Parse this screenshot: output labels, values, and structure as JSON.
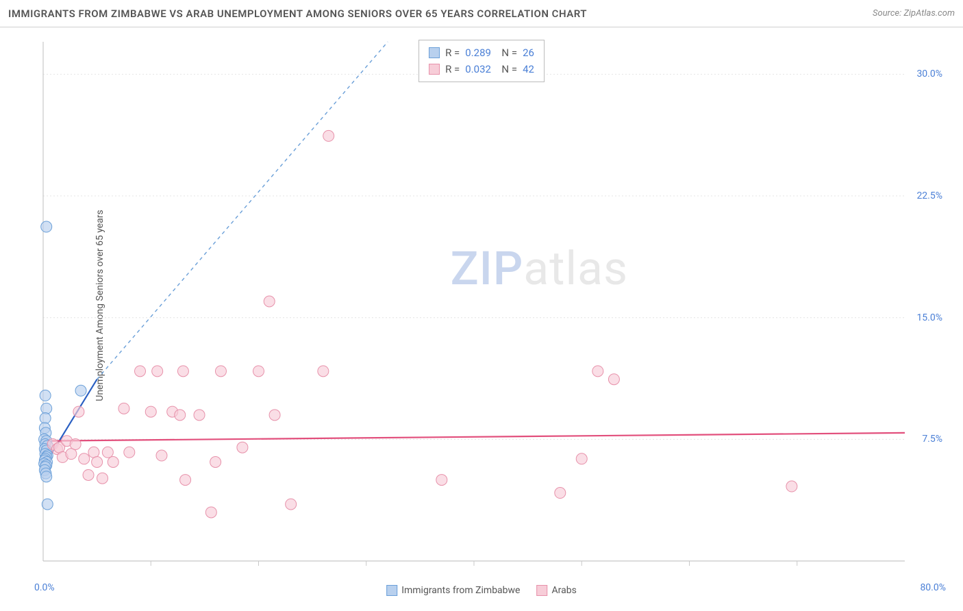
{
  "header": {
    "title": "IMMIGRANTS FROM ZIMBABWE VS ARAB UNEMPLOYMENT AMONG SENIORS OVER 65 YEARS CORRELATION CHART",
    "source_label": "Source: ",
    "source_name": "ZipAtlas.com"
  },
  "watermark": {
    "part1": "ZIP",
    "part2": "atlas"
  },
  "chart": {
    "type": "scatter",
    "background_color": "#ffffff",
    "grid_color": "#e4e4e4",
    "axis_color": "#c8c8c8",
    "tick_color": "#c8c8c8",
    "text_color": "#555555",
    "value_color": "#4a7fd6",
    "ylabel": "Unemployment Among Seniors over 65 years",
    "xlim": [
      0,
      80
    ],
    "ylim": [
      0,
      32
    ],
    "x_origin_label": "0.0%",
    "x_max_label": "80.0%",
    "x_ticks": [
      10,
      20,
      30,
      40,
      50,
      60,
      70
    ],
    "y_ticks": [
      {
        "v": 7.5,
        "label": "7.5%"
      },
      {
        "v": 15.0,
        "label": "15.0%"
      },
      {
        "v": 22.5,
        "label": "22.5%"
      },
      {
        "v": 30.0,
        "label": "30.0%"
      }
    ],
    "series": [
      {
        "id": "zimbabwe",
        "label": "Immigrants from Zimbabwe",
        "fill": "#b8d0ee",
        "stroke": "#6a9fd8",
        "marker_r": 8,
        "R": "0.289",
        "N": "26",
        "trend": {
          "solid": {
            "x1": 0.2,
            "y1": 6.0,
            "x2": 5.0,
            "y2": 11.2,
            "color": "#2a5fc2",
            "width": 2.2
          },
          "dash": {
            "x1": 5.0,
            "y1": 11.2,
            "x2": 32.0,
            "y2": 32.0,
            "color": "#6a9fd8",
            "width": 1.4,
            "dash": "5,5"
          }
        },
        "points": [
          [
            0.3,
            20.6
          ],
          [
            0.2,
            10.2
          ],
          [
            0.3,
            9.4
          ],
          [
            0.2,
            8.8
          ],
          [
            0.15,
            8.2
          ],
          [
            0.25,
            7.9
          ],
          [
            0.1,
            7.5
          ],
          [
            0.3,
            7.4
          ],
          [
            0.2,
            7.2
          ],
          [
            0.4,
            7.1
          ],
          [
            0.15,
            6.9
          ],
          [
            0.3,
            6.8
          ],
          [
            0.2,
            6.6
          ],
          [
            0.4,
            6.5
          ],
          [
            0.3,
            6.4
          ],
          [
            0.2,
            6.3
          ],
          [
            0.15,
            6.2
          ],
          [
            0.35,
            6.1
          ],
          [
            0.1,
            6.0
          ],
          [
            0.3,
            5.9
          ],
          [
            0.2,
            5.8
          ],
          [
            0.15,
            5.6
          ],
          [
            0.25,
            5.4
          ],
          [
            0.3,
            5.2
          ],
          [
            3.5,
            10.5
          ],
          [
            0.4,
            3.5
          ]
        ]
      },
      {
        "id": "arabs",
        "label": "Arabs",
        "fill": "#f7cdd8",
        "stroke": "#e791aa",
        "marker_r": 8,
        "R": "0.032",
        "N": "42",
        "trend": {
          "solid": {
            "x1": 0.0,
            "y1": 7.4,
            "x2": 80.0,
            "y2": 7.9,
            "color": "#e24f7c",
            "width": 2.2
          }
        },
        "points": [
          [
            26.5,
            26.2
          ],
          [
            21.0,
            16.0
          ],
          [
            0.9,
            7.2
          ],
          [
            1.3,
            6.9
          ],
          [
            1.5,
            7.0
          ],
          [
            1.8,
            6.4
          ],
          [
            2.2,
            7.4
          ],
          [
            2.6,
            6.6
          ],
          [
            3.0,
            7.2
          ],
          [
            3.3,
            9.2
          ],
          [
            3.8,
            6.3
          ],
          [
            4.2,
            5.3
          ],
          [
            4.7,
            6.7
          ],
          [
            5.0,
            6.1
          ],
          [
            5.5,
            5.1
          ],
          [
            6.0,
            6.7
          ],
          [
            6.5,
            6.1
          ],
          [
            7.5,
            9.4
          ],
          [
            8.0,
            6.7
          ],
          [
            9.0,
            11.7
          ],
          [
            10.0,
            9.2
          ],
          [
            10.6,
            11.7
          ],
          [
            11.0,
            6.5
          ],
          [
            12.0,
            9.2
          ],
          [
            12.7,
            9.0
          ],
          [
            13.0,
            11.7
          ],
          [
            13.2,
            5.0
          ],
          [
            14.5,
            9.0
          ],
          [
            15.6,
            3.0
          ],
          [
            16.0,
            6.1
          ],
          [
            16.5,
            11.7
          ],
          [
            18.5,
            7.0
          ],
          [
            20.0,
            11.7
          ],
          [
            21.5,
            9.0
          ],
          [
            23.0,
            3.5
          ],
          [
            26.0,
            11.7
          ],
          [
            37.0,
            5.0
          ],
          [
            48.0,
            4.2
          ],
          [
            50.0,
            6.3
          ],
          [
            51.5,
            11.7
          ],
          [
            53.0,
            11.2
          ],
          [
            69.5,
            4.6
          ]
        ]
      }
    ],
    "bottom_legend": [
      {
        "series": "zimbabwe",
        "label": "Immigrants from Zimbabwe"
      },
      {
        "series": "arabs",
        "label": "Arabs"
      }
    ]
  }
}
